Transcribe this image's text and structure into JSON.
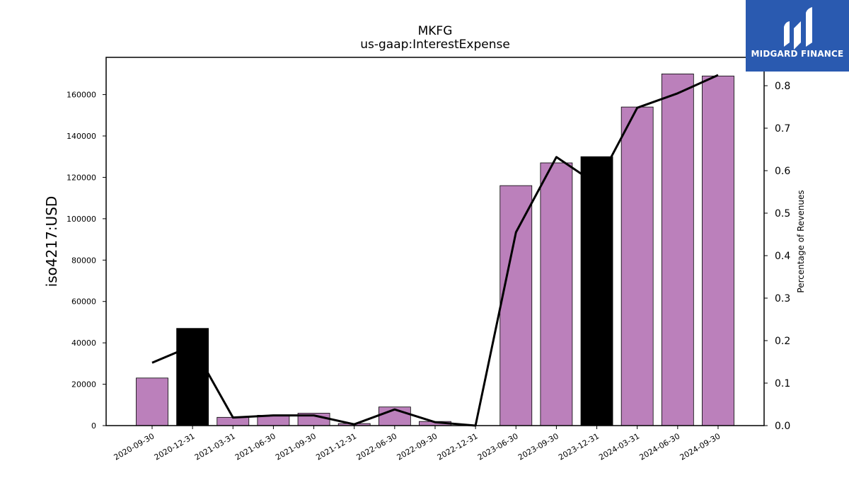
{
  "logo": {
    "text": "MIDGARD FINANCE"
  },
  "colors": {
    "bar": "#bb80bb",
    "highlight": "#000000",
    "line": "#000000",
    "logo_bg": "#2a5ab0"
  },
  "chart_data": {
    "type": "bar",
    "title": "MKFG",
    "subtitle": "us-gaap:InterestExpense",
    "ylabel": "iso4217:USD",
    "y2label": "Percentage of Revenues",
    "ylim": [
      0,
      178000
    ],
    "y2lim": [
      0,
      0.8667
    ],
    "yticks": [
      "0",
      "20000",
      "40000",
      "60000",
      "80000",
      "100000",
      "120000",
      "140000",
      "160000"
    ],
    "y2ticks": [
      "0.0",
      "0.1",
      "0.2",
      "0.3",
      "0.4",
      "0.5",
      "0.6",
      "0.7",
      "0.8"
    ],
    "categories": [
      "2020-09-30",
      "2020-12-31",
      "2021-03-31",
      "2021-06-30",
      "2021-09-30",
      "2021-12-31",
      "2022-06-30",
      "2022-09-30",
      "2022-12-31",
      "2023-06-30",
      "2023-09-30",
      "2023-12-31",
      "2024-03-31",
      "2024-06-30",
      "2024-09-30"
    ],
    "series": [
      {
        "type": "bar",
        "values": [
          23000,
          47000,
          4000,
          5000,
          6000,
          1000,
          9000,
          2000,
          0,
          116000,
          127000,
          130000,
          154000,
          170000,
          169000
        ],
        "highlight": [
          false,
          true,
          false,
          false,
          false,
          false,
          false,
          false,
          false,
          false,
          false,
          true,
          false,
          false,
          false
        ]
      },
      {
        "type": "line",
        "axis": "right",
        "values": [
          0.148,
          0.188,
          0.019,
          0.024,
          0.024,
          0.003,
          0.038,
          0.008,
          0.0,
          0.455,
          0.632,
          0.568,
          0.748,
          0.782,
          0.825
        ]
      }
    ],
    "grid": false,
    "legend": "none"
  }
}
